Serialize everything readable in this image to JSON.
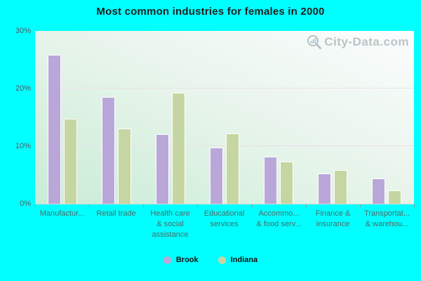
{
  "title": "Most common industries for females in 2000",
  "watermark": {
    "text": "City-Data.com"
  },
  "colors": {
    "background": "#00ffff",
    "plot_gradient_bottom_left": "#c9ecd6",
    "plot_gradient_top_right": "#fbfdfe",
    "gridline": "#ecdfec",
    "brook_bar": "#b9a7d9",
    "indiana_bar": "#c6d6a2",
    "bar_border": "#ffffff",
    "y_axis_text": "#555a63",
    "x_axis_text": "#4d6a68",
    "title_text": "#1f1f1f",
    "legend_text": "#111111",
    "watermark_text": "#848b91"
  },
  "chart_data": {
    "type": "bar",
    "title": "Most common industries for females in 2000",
    "categories": [
      "Manufacturing",
      "Retail trade",
      "Health care & social assistance",
      "Educational services",
      "Accommodation & food services",
      "Finance & insurance",
      "Transportation & warehousing"
    ],
    "category_display_lines": [
      [
        "Manufactur..."
      ],
      [
        "Retail trade"
      ],
      [
        "Health care",
        "& social",
        "assistance"
      ],
      [
        "Educational",
        "services"
      ],
      [
        "Accommo...",
        "& food serv..."
      ],
      [
        "Finance &",
        "insurance"
      ],
      [
        "Transportat...",
        "& warehou..."
      ]
    ],
    "series": [
      {
        "name": "Brook",
        "color": "#b9a7d9",
        "values": [
          25.9,
          18.5,
          12.1,
          9.7,
          8.2,
          5.3,
          4.4
        ]
      },
      {
        "name": "Indiana",
        "color": "#c6d6a2",
        "values": [
          14.8,
          13.1,
          19.3,
          12.2,
          7.3,
          5.9,
          2.3
        ]
      }
    ],
    "xlabel": "",
    "ylabel": "",
    "ylim": [
      0,
      30
    ],
    "yticks": [
      0,
      10,
      20,
      30
    ],
    "ytick_labels": [
      "0%",
      "10%",
      "20%",
      "30%"
    ],
    "grid": "horizontal",
    "legend_position": "bottom"
  }
}
